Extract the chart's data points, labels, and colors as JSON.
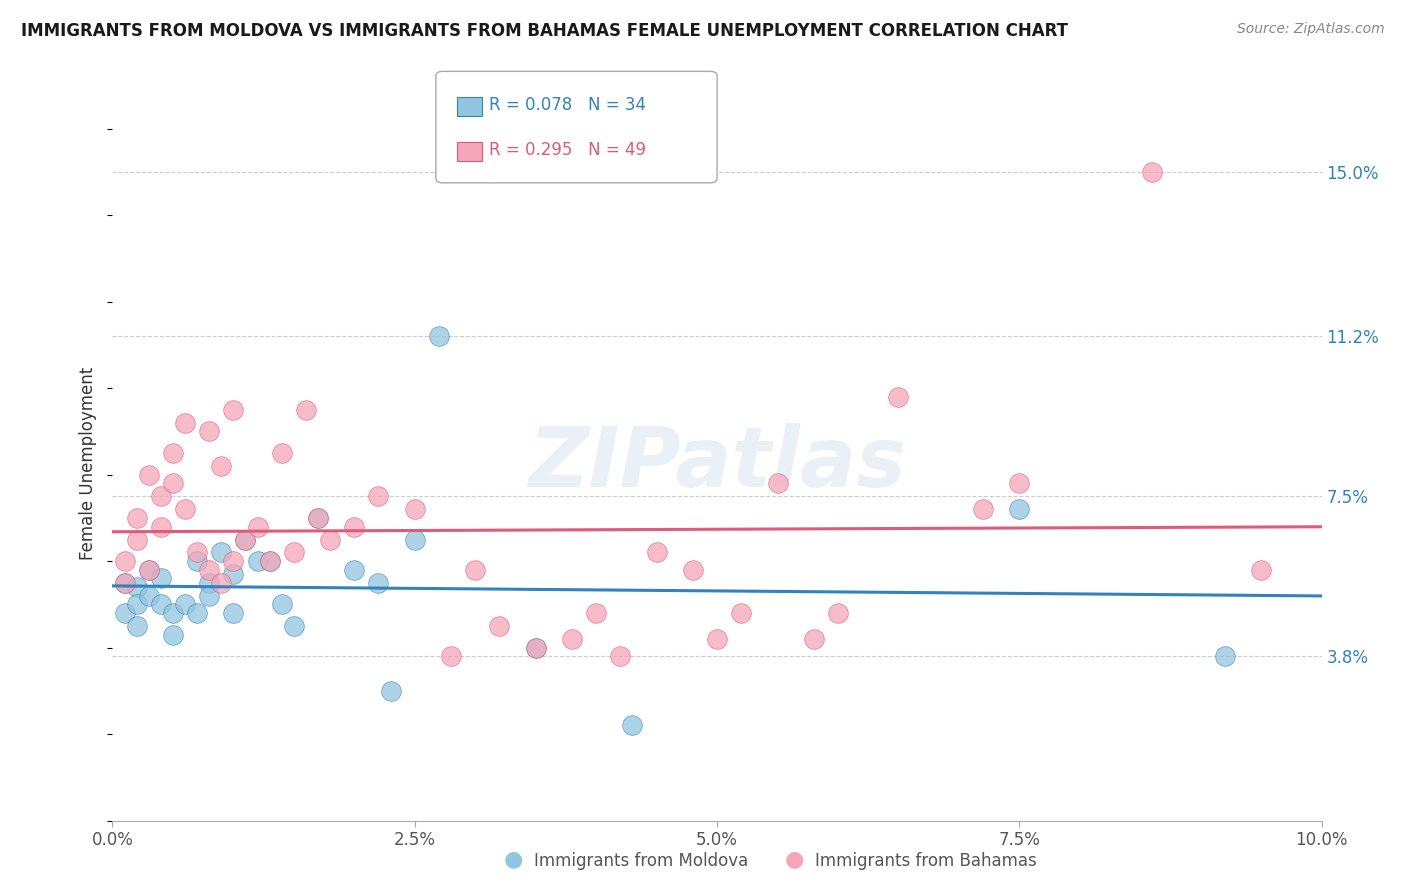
{
  "title": "IMMIGRANTS FROM MOLDOVA VS IMMIGRANTS FROM BAHAMAS FEMALE UNEMPLOYMENT CORRELATION CHART",
  "source": "Source: ZipAtlas.com",
  "ylabel_label": "Female Unemployment",
  "xlim": [
    0.0,
    0.1
  ],
  "ylim": [
    0.0,
    0.165
  ],
  "ytick_labels": [
    "3.8%",
    "7.5%",
    "11.2%",
    "15.0%"
  ],
  "ytick_values": [
    0.038,
    0.075,
    0.112,
    0.15
  ],
  "xtick_values": [
    0.0,
    0.025,
    0.05,
    0.075,
    0.1
  ],
  "xtick_labels": [
    "0.0%",
    "2.5%",
    "5.0%",
    "7.5%",
    "10.0%"
  ],
  "legend_r_moldova": "R = 0.078",
  "legend_n_moldova": "N = 34",
  "legend_r_bahamas": "R = 0.295",
  "legend_n_bahamas": "N = 49",
  "color_moldova": "#92c5de",
  "color_bahamas": "#f4a6b8",
  "line_color_moldova": "#3182bd",
  "line_color_bahamas": "#e05a7a",
  "watermark": "ZIPatlas",
  "moldova_x": [
    0.001,
    0.001,
    0.002,
    0.002,
    0.002,
    0.003,
    0.003,
    0.004,
    0.004,
    0.005,
    0.005,
    0.006,
    0.007,
    0.007,
    0.008,
    0.008,
    0.009,
    0.01,
    0.01,
    0.011,
    0.012,
    0.013,
    0.014,
    0.015,
    0.017,
    0.02,
    0.022,
    0.023,
    0.025,
    0.027,
    0.035,
    0.043,
    0.075,
    0.092
  ],
  "moldova_y": [
    0.055,
    0.048,
    0.054,
    0.05,
    0.045,
    0.058,
    0.052,
    0.056,
    0.05,
    0.048,
    0.043,
    0.05,
    0.048,
    0.06,
    0.055,
    0.052,
    0.062,
    0.057,
    0.048,
    0.065,
    0.06,
    0.06,
    0.05,
    0.045,
    0.07,
    0.058,
    0.055,
    0.03,
    0.065,
    0.112,
    0.04,
    0.022,
    0.072,
    0.038
  ],
  "bahamas_x": [
    0.001,
    0.001,
    0.002,
    0.002,
    0.003,
    0.003,
    0.004,
    0.004,
    0.005,
    0.005,
    0.006,
    0.006,
    0.007,
    0.008,
    0.008,
    0.009,
    0.009,
    0.01,
    0.01,
    0.011,
    0.012,
    0.013,
    0.014,
    0.015,
    0.016,
    0.017,
    0.018,
    0.02,
    0.022,
    0.025,
    0.028,
    0.03,
    0.032,
    0.035,
    0.038,
    0.04,
    0.042,
    0.045,
    0.048,
    0.05,
    0.052,
    0.055,
    0.058,
    0.06,
    0.065,
    0.072,
    0.075,
    0.086,
    0.095
  ],
  "bahamas_y": [
    0.06,
    0.055,
    0.07,
    0.065,
    0.08,
    0.058,
    0.075,
    0.068,
    0.078,
    0.085,
    0.072,
    0.092,
    0.062,
    0.09,
    0.058,
    0.055,
    0.082,
    0.06,
    0.095,
    0.065,
    0.068,
    0.06,
    0.085,
    0.062,
    0.095,
    0.07,
    0.065,
    0.068,
    0.075,
    0.072,
    0.038,
    0.058,
    0.045,
    0.04,
    0.042,
    0.048,
    0.038,
    0.062,
    0.058,
    0.042,
    0.048,
    0.078,
    0.042,
    0.048,
    0.098,
    0.072,
    0.078,
    0.15,
    0.058
  ]
}
